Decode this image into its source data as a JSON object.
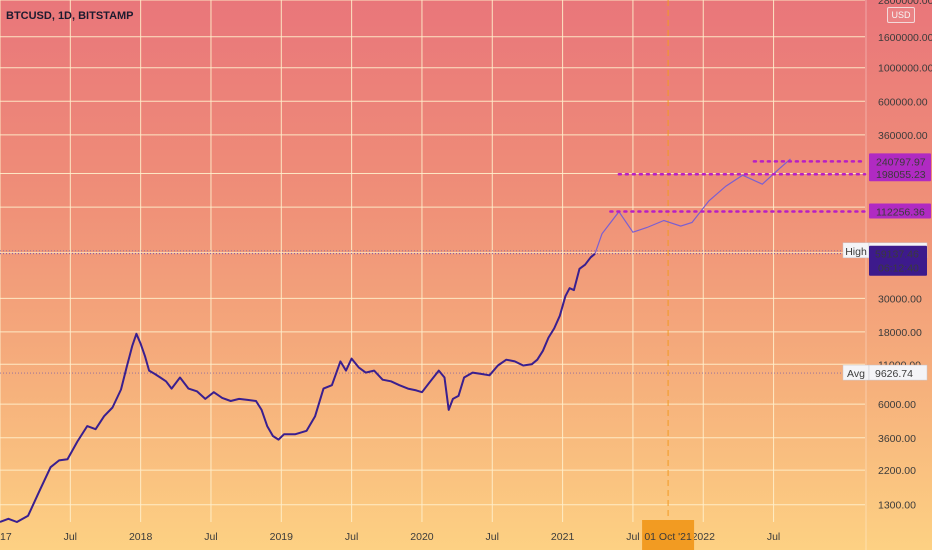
{
  "title": "BTCUSD, 1D, BITSTAMP",
  "currency_badge": "USD",
  "colors": {
    "price_line": "#3a1f8f",
    "projection_line": "#7b5fd1",
    "target_dots": "#b81fc4",
    "target_label_bg": "#b02ac2",
    "last_price_bg": "#3d1a8c",
    "crosshair": "#f29b22",
    "grid": "#fff0cc"
  },
  "chart_data": {
    "type": "line",
    "yscale": "log",
    "ylim": [
      1000,
      2800000
    ],
    "xlim": [
      2017.0,
      2023.15
    ],
    "y_tick_labels": [
      "1300.00",
      "2200.00",
      "3600.00",
      "6000.00",
      "11000.00",
      "18000.00",
      "30000.00",
      "60000.00",
      "120000.00",
      "200000.00",
      "360000.00",
      "600000.00",
      "1000000.00",
      "1600000.00",
      "2800000.00"
    ],
    "x_tick_labels": [
      {
        "x": 2017.0,
        "label": "2017"
      },
      {
        "x": 2017.5,
        "label": "Jul"
      },
      {
        "x": 2018.0,
        "label": "2018"
      },
      {
        "x": 2018.5,
        "label": "Jul"
      },
      {
        "x": 2019.0,
        "label": "2019"
      },
      {
        "x": 2019.5,
        "label": "Jul"
      },
      {
        "x": 2020.0,
        "label": "2020"
      },
      {
        "x": 2020.5,
        "label": "Jul"
      },
      {
        "x": 2021.0,
        "label": "2021"
      },
      {
        "x": 2021.5,
        "label": "Jul"
      },
      {
        "x": 2022.0,
        "label": "2022"
      },
      {
        "x": 2022.5,
        "label": "Jul"
      }
    ],
    "series": [
      {
        "role": "price",
        "x": [
          2017.0,
          2017.06,
          2017.12,
          2017.2,
          2017.28,
          2017.36,
          2017.42,
          2017.48,
          2017.55,
          2017.62,
          2017.68,
          2017.74,
          2017.8,
          2017.86,
          2017.9,
          2017.94,
          2017.97,
          2018.0,
          2018.03,
          2018.06,
          2018.1,
          2018.14,
          2018.18,
          2018.22,
          2018.28,
          2018.34,
          2018.4,
          2018.46,
          2018.52,
          2018.58,
          2018.64,
          2018.7,
          2018.76,
          2018.82,
          2018.86,
          2018.9,
          2018.94,
          2018.98,
          2019.02,
          2019.1,
          2019.18,
          2019.24,
          2019.3,
          2019.36,
          2019.42,
          2019.46,
          2019.5,
          2019.55,
          2019.6,
          2019.66,
          2019.72,
          2019.78,
          2019.84,
          2019.9,
          2019.96,
          2020.0,
          2020.06,
          2020.12,
          2020.16,
          2020.19,
          2020.22,
          2020.26,
          2020.3,
          2020.36,
          2020.42,
          2020.48,
          2020.54,
          2020.6,
          2020.66,
          2020.72,
          2020.78,
          2020.82,
          2020.86,
          2020.9,
          2020.94,
          2020.98,
          2021.02,
          2021.05,
          2021.08,
          2021.12,
          2021.16,
          2021.2,
          2021.23
        ],
        "values": [
          1000,
          1050,
          1000,
          1100,
          1600,
          2300,
          2550,
          2600,
          3400,
          4300,
          4100,
          5000,
          5700,
          7500,
          10500,
          14500,
          17500,
          15000,
          12500,
          10000,
          9500,
          9000,
          8500,
          7600,
          9000,
          7600,
          7300,
          6500,
          7200,
          6600,
          6300,
          6500,
          6400,
          6300,
          5500,
          4300,
          3700,
          3500,
          3800,
          3800,
          4000,
          5000,
          7600,
          8000,
          11500,
          10000,
          12000,
          10500,
          9700,
          10000,
          8700,
          8500,
          8000,
          7600,
          7400,
          7200,
          8500,
          10000,
          9000,
          5500,
          6500,
          6800,
          9000,
          9700,
          9500,
          9300,
          10800,
          11800,
          11500,
          10800,
          11000,
          11800,
          13500,
          16500,
          19000,
          23000,
          31000,
          35000,
          34000,
          47000,
          50000,
          56000,
          59137
        ]
      },
      {
        "role": "projection",
        "x": [
          2021.23,
          2021.28,
          2021.4,
          2021.5,
          2021.6,
          2021.72,
          2021.84,
          2021.92,
          2022.04,
          2022.16,
          2022.28,
          2022.42,
          2022.54,
          2022.62
        ],
        "values": [
          59137,
          80000,
          112000,
          82000,
          88000,
          98000,
          90000,
          95000,
          132000,
          165000,
          195000,
          170000,
          215000,
          250000
        ]
      }
    ],
    "horizontal_levels": [
      {
        "name": "High",
        "value": "61781.83",
        "level": 61781.83
      },
      {
        "name": "Avg",
        "value": "9626.74",
        "level": 9626.74
      }
    ],
    "last_price": {
      "value": "59137.46",
      "level": 59137.46,
      "countdown": "06:12:40"
    },
    "targets": [
      {
        "value": "240797.97",
        "level": 240797.97,
        "x_from": 2022.36,
        "x_to": 2022.82
      },
      {
        "value": "198055.23",
        "level": 198055.23,
        "x_from": 2021.4,
        "x_to": 2022.82
      },
      {
        "value": "112256.36",
        "level": 112256.36,
        "x_from": 2021.34,
        "x_to": 2022.82
      }
    ],
    "crosshair": {
      "x": 2021.75,
      "date_label": "01 Oct '21"
    }
  }
}
